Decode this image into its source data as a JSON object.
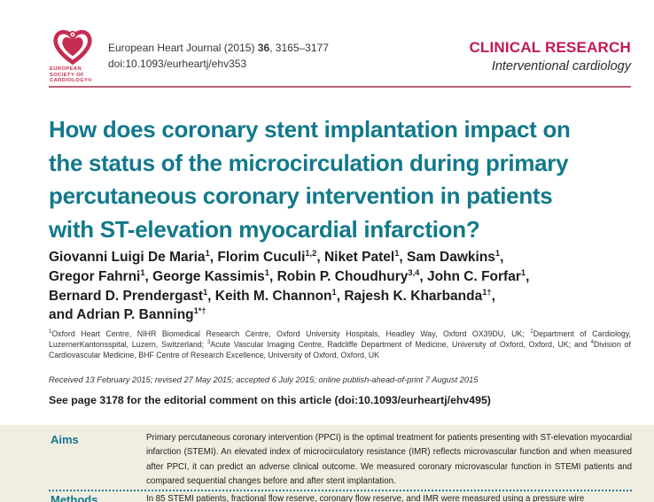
{
  "brand": {
    "teal": "#12798b",
    "red": "#c41a50",
    "logo_red": "#c62d50",
    "rule_pink": "#be5f76",
    "abstract_bg": "#f0ede1"
  },
  "masthead": {
    "logo_caption_lines": [
      "EUROPEAN",
      "SOCIETY OF",
      "CARDIOLOGY®"
    ],
    "journal_line": [
      {
        "t": "x",
        "v": "European Heart Journal (2015) "
      },
      {
        "t": "b",
        "v": "36"
      },
      {
        "t": "x",
        "v": ", 3165–3177"
      }
    ],
    "doi": "doi:10.1093/eurheartj/ehv353",
    "section": "CLINICAL RESEARCH",
    "subsection": "Interventional cardiology"
  },
  "article": {
    "title_lines": [
      "How does coronary stent implantation impact on",
      "the status of the microcirculation during primary",
      "percutaneous coronary intervention in patients",
      "with ST-elevation myocardial infarction?"
    ],
    "author_lines": [
      [
        {
          "t": "x",
          "v": "Giovanni Luigi De Maria"
        },
        {
          "t": "s",
          "v": "1"
        },
        {
          "t": "x",
          "v": ", Florim Cuculi"
        },
        {
          "t": "s",
          "v": "1,2"
        },
        {
          "t": "x",
          "v": ", Niket Patel"
        },
        {
          "t": "s",
          "v": "1"
        },
        {
          "t": "x",
          "v": ", Sam Dawkins"
        },
        {
          "t": "s",
          "v": "1"
        },
        {
          "t": "x",
          "v": ","
        }
      ],
      [
        {
          "t": "x",
          "v": "Gregor Fahrni"
        },
        {
          "t": "s",
          "v": "1"
        },
        {
          "t": "x",
          "v": ", George Kassimis"
        },
        {
          "t": "s",
          "v": "1"
        },
        {
          "t": "x",
          "v": ", Robin P. Choudhury"
        },
        {
          "t": "s",
          "v": "3,4"
        },
        {
          "t": "x",
          "v": ", John C. Forfar"
        },
        {
          "t": "s",
          "v": "1"
        },
        {
          "t": "x",
          "v": ","
        }
      ],
      [
        {
          "t": "x",
          "v": "Bernard D. Prendergast"
        },
        {
          "t": "s",
          "v": "1"
        },
        {
          "t": "x",
          "v": ", Keith M. Channon"
        },
        {
          "t": "s",
          "v": "1"
        },
        {
          "t": "x",
          "v": ", Rajesh K. Kharbanda"
        },
        {
          "t": "s",
          "v": "1†"
        },
        {
          "t": "x",
          "v": ","
        }
      ],
      [
        {
          "t": "x",
          "v": "and Adrian P. Banning"
        },
        {
          "t": "s",
          "v": "1*†"
        }
      ]
    ],
    "affiliations": [
      {
        "t": "s",
        "v": "1"
      },
      {
        "t": "x",
        "v": "Oxford Heart Centre, NIHR Biomedical Research Centre, Oxford University Hospitals, Headley Way, Oxford OX39DU, UK; "
      },
      {
        "t": "s",
        "v": "2"
      },
      {
        "t": "x",
        "v": "Department of Cardiology, LuzernerKantonsspital, Luzern, Switzerland; "
      },
      {
        "t": "s",
        "v": "3"
      },
      {
        "t": "x",
        "v": "Acute Vascular Imaging Centre, Radcliffe Department of Medicine, University of Oxford, Oxford, UK; and "
      },
      {
        "t": "s",
        "v": "4"
      },
      {
        "t": "x",
        "v": "Division of Cardiovascular Medicine, BHF Centre of Research Excellence, University of Oxford, Oxford, UK"
      }
    ],
    "history": "Received 13 February 2015; revised 27 May 2015; accepted 6 July 2015; online publish-ahead-of-print 7 August 2015",
    "editorial_note": "See page 3178 for the editorial comment on this article (doi:10.1093/eurheartj/ehv495)"
  },
  "abstract": {
    "sections": [
      {
        "label": "Aims",
        "text": "Primary percutaneous coronary intervention (PPCI) is the optimal treatment for patients presenting with ST-elevation myocardial infarction (STEMI). An elevated index of microcirculatory resistance (IMR) reflects microvascular function and when measured after PPCI, it can predict an adverse clinical outcome. We measured coronary microvascular function in STEMI patients and compared sequential changes before and after stent implantation."
      },
      {
        "label": "Methods",
        "text": "In 85 STEMI patients, fractional flow reserve, coronary flow reserve, and IMR were measured using a pressure wire"
      }
    ]
  }
}
